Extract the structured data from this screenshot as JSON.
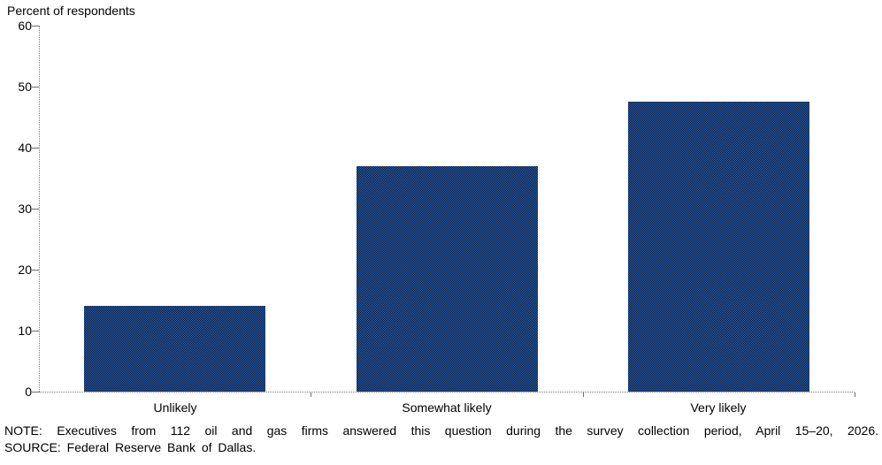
{
  "chart": {
    "title": "Percent of respondents"
  },
  "chart_data": {
    "type": "bar",
    "title": "Percent of respondents",
    "categories": [
      "Unlikely",
      "Somewhat likely",
      "Very likely"
    ],
    "values": [
      14,
      37,
      47.5
    ],
    "xlabel": "",
    "ylabel": "Percent of respondents",
    "ylim": [
      0,
      60
    ],
    "yticks": [
      0,
      10,
      20,
      30,
      40,
      50,
      60
    ],
    "grid": false,
    "legend": "none",
    "bar_fill_colors": [
      "#2e60ae",
      "#081a38"
    ],
    "bar_fill_style": "checkerboard-dither",
    "axis_color": "#7a7a7a"
  },
  "footer": {
    "note": "NOTE: Executives from 112 oil and gas firms answered this question during the survey collection period, April 15–20, 2026.",
    "source": "SOURCE: Federal Reserve Bank of Dallas."
  }
}
